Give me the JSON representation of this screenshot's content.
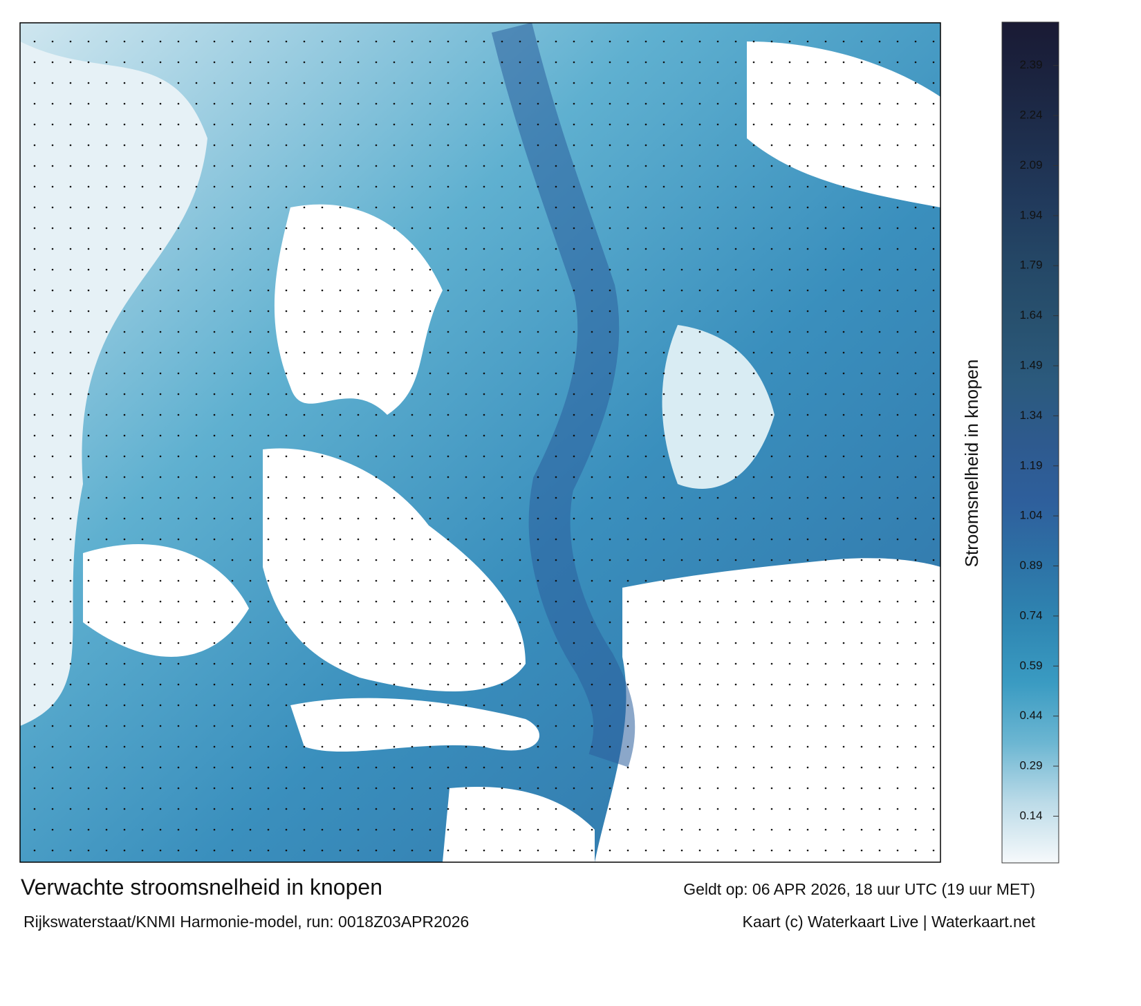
{
  "chart_data": {
    "type": "colorbar",
    "title": "Verwachte stroomsnelheid in knopen",
    "subtitle": "Rijkswaterstaat/KNMI Harmonie-model, run: 0018Z03APR2026",
    "valid_time": "Geldt op: 06 APR 2026, 18 uur UTC (19 uur MET)",
    "credit": "Kaart (c) Waterkaart Live | Waterkaart.net",
    "colorbar_label": "Stroomsnelheid in knopen",
    "clim": [
      0,
      2.52
    ],
    "ticks": [
      0.14,
      0.29,
      0.44,
      0.59,
      0.74,
      0.89,
      1.04,
      1.19,
      1.34,
      1.49,
      1.64,
      1.79,
      1.94,
      2.09,
      2.24,
      2.39
    ],
    "colors": [
      "#f6f9fb",
      "#bcdbe8",
      "#6cb6d2",
      "#3a9bc2",
      "#2f86b2",
      "#2d72a6",
      "#2e5f9c",
      "#2e5a8e",
      "#2b5a7d",
      "#28516f",
      "#244766",
      "#213a5c",
      "#1e2f4e",
      "#1b2440",
      "#1a1a34"
    ]
  }
}
